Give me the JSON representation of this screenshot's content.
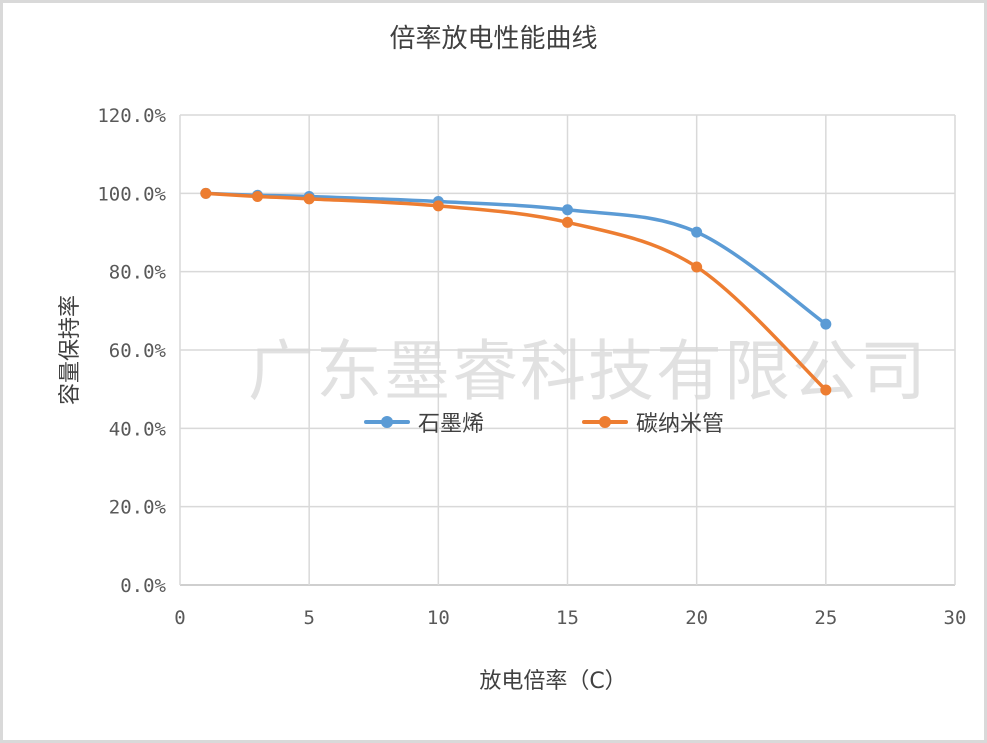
{
  "watermark": "广东墨睿科技有限公司",
  "chart_data": {
    "type": "line",
    "title": "倍率放电性能曲线",
    "xlabel": "放电倍率（C）",
    "ylabel": "容量保持率",
    "xlim": [
      0,
      30
    ],
    "ylim": [
      0,
      1.2
    ],
    "x_ticks": [
      0,
      5,
      10,
      15,
      20,
      25,
      30
    ],
    "x_tick_labels": [
      "0",
      "5",
      "10",
      "15",
      "20",
      "25",
      "30"
    ],
    "y_ticks": [
      0,
      0.2,
      0.4,
      0.6,
      0.8,
      1.0,
      1.2
    ],
    "y_tick_labels": [
      "0.0%",
      "20.0%",
      "40.0%",
      "60.0%",
      "80.0%",
      "100.0%",
      "120.0%"
    ],
    "grid": true,
    "smooth": true,
    "legend_position": "center",
    "series": [
      {
        "name": "石墨烯",
        "color": "#5b9bd5",
        "x": [
          1,
          3,
          5,
          10,
          15,
          20,
          25
        ],
        "y": [
          1.0,
          0.995,
          0.992,
          0.979,
          0.958,
          0.901,
          0.666
        ]
      },
      {
        "name": "碳纳米管",
        "color": "#ed7d31",
        "x": [
          1,
          3,
          5,
          10,
          15,
          20,
          25
        ],
        "y": [
          1.0,
          0.992,
          0.986,
          0.968,
          0.926,
          0.812,
          0.498
        ]
      }
    ]
  }
}
